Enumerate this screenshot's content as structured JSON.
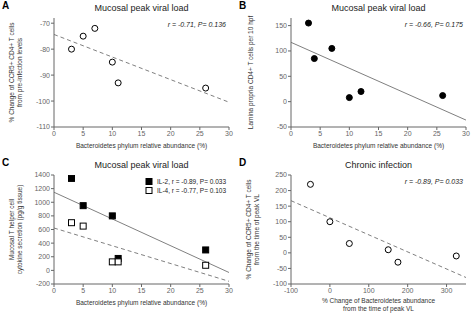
{
  "chart_data": [
    {
      "type": "scatter",
      "panel_label": "A",
      "title": "Mucosal peak viral load",
      "x_label": "Bacteroidetes phylum relative abundance (%)",
      "y_label": "% Change of CCR5+ CD4+ T cells\nfrom pre-infection levels",
      "annotation": "r = -0.71, P= 0.136",
      "xlim": [
        0,
        30
      ],
      "ylim": [
        -110,
        -68
      ],
      "xticks": [
        0,
        5,
        10,
        15,
        20,
        25,
        30
      ],
      "yticks": [
        -110,
        -100,
        -90,
        -80,
        -70
      ],
      "grid": false,
      "series": [
        {
          "type": "scatter",
          "marker": "open_circle",
          "color": "black",
          "x": [
            3,
            5,
            7,
            10,
            11,
            26
          ],
          "values": [
            -80,
            -75,
            -72,
            -85,
            -93,
            -95
          ]
        },
        {
          "type": "line",
          "line_style": "dashed",
          "color": "gray",
          "x": [
            0,
            30
          ],
          "values": [
            -74.3399,
            -100.4499
          ]
        }
      ]
    },
    {
      "type": "scatter",
      "panel_label": "B",
      "title": "Mucosal peak viral load",
      "x_label": "Bacteroidetes phylum relative abundance (%)",
      "y_label": "Lamina propria CD4+ T cells per 10 hpf",
      "annotation": "r = -0.66, P= 0.175",
      "xlim": [
        0,
        30
      ],
      "ylim": [
        -50,
        165
      ],
      "xticks": [
        0,
        5,
        10,
        15,
        20,
        25,
        30
      ],
      "yticks": [
        -50,
        0,
        50,
        100,
        150
      ],
      "grid": false,
      "series": [
        {
          "type": "scatter",
          "marker": "filled_circle",
          "color": "black",
          "x": [
            3,
            4,
            7,
            10,
            12,
            26
          ],
          "values": [
            155,
            85,
            105,
            8,
            20,
            12
          ]
        },
        {
          "type": "line",
          "line_style": "solid",
          "color": "gray",
          "x": [
            0,
            30
          ],
          "values": [
            116.9934,
            -36.3745
          ]
        }
      ]
    },
    {
      "type": "scatter",
      "panel_label": "C",
      "title": "Mucosal peak viral load",
      "x_label": "Bacteroidetes phylum relative abundance (%)",
      "y_label": "Mucosal T helper cell\ncytokine secretion (pg/g tissue)",
      "xlim": [
        0,
        30
      ],
      "ylim": [
        -200,
        1400
      ],
      "xticks": [
        0,
        5,
        10,
        15,
        20,
        25,
        30
      ],
      "yticks": [
        -200,
        0,
        200,
        400,
        600,
        800,
        1000,
        1200,
        1400
      ],
      "grid": false,
      "legend": "upper right",
      "series": [
        {
          "name": "IL-2, r = -0.89, P= 0.033",
          "type": "scatter",
          "marker": "filled_square",
          "color": "black",
          "x": [
            3,
            5,
            10,
            11,
            26
          ],
          "values": [
            1350,
            950,
            800,
            175,
            300
          ]
        },
        {
          "name": "IL-4, r = -0.77, P= 0.103",
          "type": "scatter",
          "marker": "open_square",
          "color": "black",
          "x": [
            3,
            5,
            10,
            11,
            26
          ],
          "values": [
            700,
            650,
            125,
            125,
            75
          ]
        },
        {
          "type": "line",
          "line_style": "solid",
          "color": "gray",
          "x": [
            0,
            30
          ],
          "values": [
            1146.9018,
            -31.0123
          ]
        },
        {
          "type": "line",
          "line_style": "dashed",
          "color": "gray",
          "x": [
            0,
            30
          ],
          "values": [
            621.8098,
            -160.3988
          ]
        }
      ]
    },
    {
      "type": "scatter",
      "panel_label": "D",
      "title": "Chronic infection",
      "x_label": "% Change of Bacteroidetes abundance\nfrom the time of peak VL",
      "y_label": "% Change of CCR5+ CD4+ T cells\nfrom the time of peak VL",
      "annotation": "r = -0.89, P= 0.033",
      "xlim": [
        -100,
        350
      ],
      "ylim": [
        -100,
        250
      ],
      "xticks": [
        -100,
        0,
        100,
        200,
        300
      ],
      "yticks": [
        -100,
        -50,
        0,
        50,
        100,
        150,
        200,
        250
      ],
      "grid": false,
      "series": [
        {
          "type": "scatter",
          "marker": "open_circle",
          "color": "black",
          "x": [
            -50,
            0,
            50,
            150,
            175,
            325
          ],
          "values": [
            220,
            100,
            30,
            10,
            -30,
            -10
          ]
        },
        {
          "type": "line",
          "line_style": "dashed",
          "color": "gray",
          "x": [
            -100,
            350
          ],
          "values": [
            167.5446,
            -79.1518
          ]
        }
      ]
    }
  ]
}
